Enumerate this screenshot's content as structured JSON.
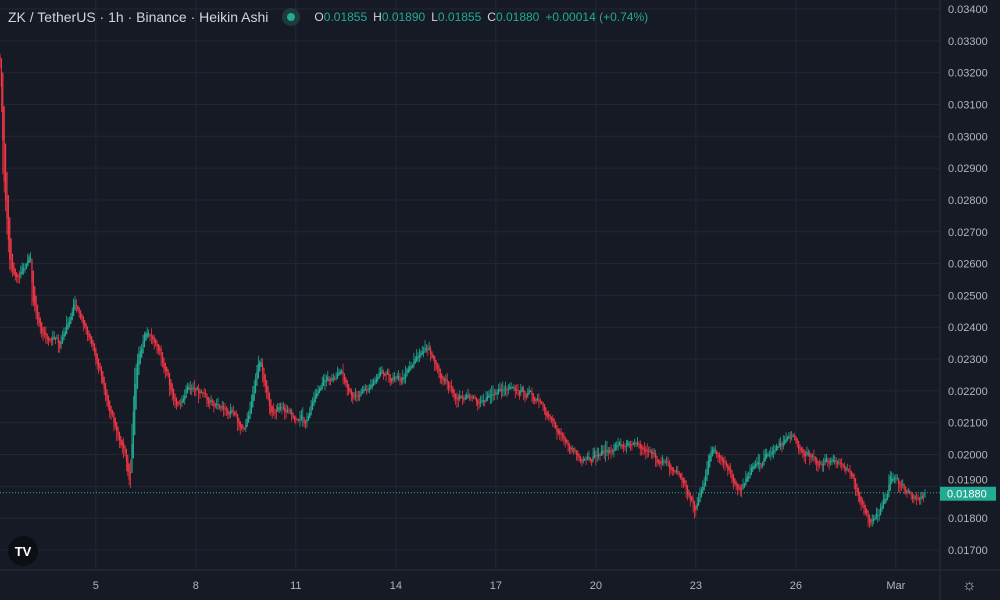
{
  "header": {
    "title": "ZK / TetherUS · 1h · Binance · Heikin Ashi",
    "status_color": "#22ab94",
    "ohlc": [
      {
        "k": "O",
        "v": "0.01855"
      },
      {
        "k": "H",
        "v": "0.01890"
      },
      {
        "k": "L",
        "v": "0.01855"
      },
      {
        "k": "C",
        "v": "0.01880"
      },
      {
        "k": "",
        "v": "+0.00014 (+0.74%)"
      }
    ]
  },
  "logo": "TV",
  "chart_data": {
    "type": "candlestick",
    "style": "heikin-ashi",
    "interval": "1h",
    "colors": {
      "up": "#22ab94",
      "down": "#f23645",
      "background": "#161a25",
      "grid": "#232733",
      "last_price": "#22ab94"
    },
    "ylim": [
      0.0165,
      0.0343
    ],
    "y_ticks": [
      "0.03400",
      "0.03300",
      "0.03200",
      "0.03100",
      "0.03000",
      "0.02900",
      "0.02800",
      "0.02700",
      "0.02600",
      "0.02500",
      "0.02400",
      "0.02300",
      "0.02200",
      "0.02100",
      "0.02000",
      "0.01900",
      "0.01800",
      "0.01700"
    ],
    "x_ticks": [
      {
        "label": "5",
        "date": "2025-02-05T00:00"
      },
      {
        "label": "8",
        "date": "2025-02-08T00:00"
      },
      {
        "label": "11",
        "date": "2025-02-11T00:00"
      },
      {
        "label": "14",
        "date": "2025-02-14T00:00"
      },
      {
        "label": "17",
        "date": "2025-02-17T00:00"
      },
      {
        "label": "20",
        "date": "2025-02-20T00:00"
      },
      {
        "label": "23",
        "date": "2025-02-23T00:00"
      },
      {
        "label": "26",
        "date": "2025-02-26T00:00"
      },
      {
        "label": "Mar",
        "date": "2025-03-01T00:00"
      }
    ],
    "last_price": "0.01880",
    "price_path": [
      [
        "2025-02-02T03:00",
        0.0324
      ],
      [
        "2025-02-02T05:00",
        0.029
      ],
      [
        "2025-02-02T10:00",
        0.0258
      ],
      [
        "2025-02-02T14:00",
        0.0255
      ],
      [
        "2025-02-03T01:00",
        0.0262
      ],
      [
        "2025-02-03T02:00",
        0.0248
      ],
      [
        "2025-02-03T08:00",
        0.0238
      ],
      [
        "2025-02-03T22:00",
        0.0235
      ],
      [
        "2025-02-04T09:00",
        0.0248
      ],
      [
        "2025-02-04T20:00",
        0.0235
      ],
      [
        "2025-02-05T03:00",
        0.0225
      ],
      [
        "2025-02-05T10:00",
        0.0213
      ],
      [
        "2025-02-05T21:00",
        0.02
      ],
      [
        "2025-02-06T00:00",
        0.019
      ],
      [
        "2025-02-06T04:00",
        0.0225
      ],
      [
        "2025-02-06T11:00",
        0.024
      ],
      [
        "2025-02-06T22:00",
        0.0232
      ],
      [
        "2025-02-07T09:00",
        0.0215
      ],
      [
        "2025-02-07T20:00",
        0.0222
      ],
      [
        "2025-02-08T07:00",
        0.0217
      ],
      [
        "2025-02-09T01:00",
        0.0213
      ],
      [
        "2025-02-09T11:00",
        0.0207
      ],
      [
        "2025-02-09T19:00",
        0.0225
      ],
      [
        "2025-02-09T22:00",
        0.023
      ],
      [
        "2025-02-10T05:00",
        0.0214
      ],
      [
        "2025-02-10T20:00",
        0.0213
      ],
      [
        "2025-02-11T07:00",
        0.0211
      ],
      [
        "2025-02-11T17:00",
        0.0222
      ],
      [
        "2025-02-12T08:00",
        0.0226
      ],
      [
        "2025-02-12T19:00",
        0.0217
      ],
      [
        "2025-02-13T13:00",
        0.0225
      ],
      [
        "2025-02-14T03:00",
        0.0223
      ],
      [
        "2025-02-14T21:00",
        0.0234
      ],
      [
        "2025-02-15T08:00",
        0.0225
      ],
      [
        "2025-02-15T19:00",
        0.0218
      ],
      [
        "2025-02-16T13:00",
        0.0217
      ],
      [
        "2025-02-17T03:00",
        0.022
      ],
      [
        "2025-02-17T17:00",
        0.022
      ],
      [
        "2025-02-18T08:00",
        0.0217
      ],
      [
        "2025-02-18T22:00",
        0.0205
      ],
      [
        "2025-02-19T13:00",
        0.0199
      ],
      [
        "2025-02-20T03:00",
        0.02
      ],
      [
        "2025-02-20T17:00",
        0.0203
      ],
      [
        "2025-02-21T08:00",
        0.0202
      ],
      [
        "2025-02-21T22:00",
        0.0198
      ],
      [
        "2025-02-22T13:00",
        0.0193
      ],
      [
        "2025-02-22T23:00",
        0.0182
      ],
      [
        "2025-02-23T07:00",
        0.0195
      ],
      [
        "2025-02-23T12:00",
        0.0203
      ],
      [
        "2025-02-23T21:00",
        0.0197
      ],
      [
        "2025-02-24T08:00",
        0.0188
      ],
      [
        "2025-02-24T15:00",
        0.0195
      ],
      [
        "2025-02-25T02:00",
        0.0199
      ],
      [
        "2025-02-25T20:00",
        0.0206
      ],
      [
        "2025-02-26T03:00",
        0.0201
      ],
      [
        "2025-02-26T17:00",
        0.0197
      ],
      [
        "2025-02-27T04:00",
        0.0199
      ],
      [
        "2025-02-27T15:00",
        0.0193
      ],
      [
        "2025-02-28T05:00",
        0.0179
      ],
      [
        "2025-02-28T13:00",
        0.0182
      ],
      [
        "2025-02-28T20:00",
        0.0193
      ],
      [
        "2025-03-01T03:00",
        0.0191
      ],
      [
        "2025-03-01T14:00",
        0.0185
      ],
      [
        "2025-03-01T21:00",
        0.0188
      ]
    ]
  }
}
